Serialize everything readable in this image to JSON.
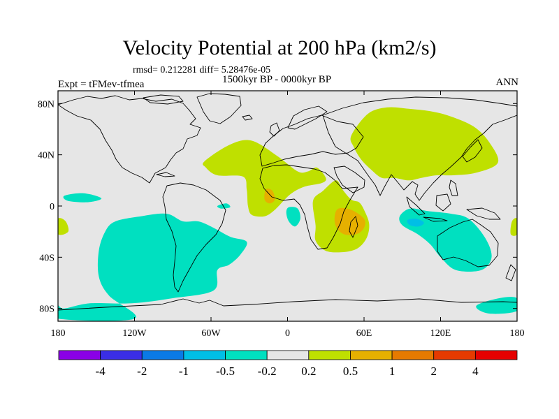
{
  "title": "Velocity Potential at 200 hPa (km2/s)",
  "stats": "rmsd= 0.212281  diff= 5.28476e-05",
  "subtitle": "1500kyr BP - 0000kyr BP",
  "experiment": "Expt = tFMev-tfmea",
  "season": "ANN",
  "map": {
    "projection": "cylindrical-equidistant",
    "lon_range": [
      -180,
      180
    ],
    "lat_range": [
      -90,
      90
    ],
    "background_color": "#e6e6e6",
    "coastline_color": "#000000",
    "lat_ticks": [
      {
        "value": 80,
        "label": "80N"
      },
      {
        "value": 40,
        "label": "40N"
      },
      {
        "value": 0,
        "label": "0"
      },
      {
        "value": -40,
        "label": "40S"
      },
      {
        "value": -80,
        "label": "80S"
      }
    ],
    "lon_ticks": [
      {
        "value": -180,
        "label": "180"
      },
      {
        "value": -120,
        "label": "120W"
      },
      {
        "value": -60,
        "label": "60W"
      },
      {
        "value": 0,
        "label": "0"
      },
      {
        "value": 60,
        "label": "60E"
      },
      {
        "value": 120,
        "label": "120E"
      },
      {
        "value": 180,
        "label": "180"
      }
    ],
    "anomaly_regions": [
      {
        "name": "eastern-pacific-south-america-negative",
        "band": "-0.5 to -0.2",
        "color": "#00e0c0",
        "polygon": [
          [
            -135,
            -12
          ],
          [
            -115,
            -8
          ],
          [
            -95,
            -6
          ],
          [
            -82,
            -12
          ],
          [
            -70,
            -12
          ],
          [
            -58,
            -17
          ],
          [
            -45,
            -24
          ],
          [
            -32,
            -28
          ],
          [
            -37,
            -38
          ],
          [
            -46,
            -46
          ],
          [
            -55,
            -50
          ],
          [
            -58,
            -66
          ],
          [
            -90,
            -72
          ],
          [
            -122,
            -76
          ],
          [
            -155,
            -76
          ],
          [
            -175,
            -80
          ],
          [
            -180,
            -78
          ],
          [
            -180,
            -88
          ],
          [
            -120,
            -88
          ],
          [
            -140,
            -70
          ],
          [
            -148,
            -55
          ],
          [
            -148,
            -35
          ],
          [
            -143,
            -20
          ]
        ]
      },
      {
        "name": "central-pacific-negative",
        "band": "-0.5 to -0.2",
        "color": "#00e0c0",
        "polygon": [
          [
            -175,
            8
          ],
          [
            -160,
            10
          ],
          [
            -146,
            6
          ],
          [
            -156,
            3
          ],
          [
            -172,
            4
          ]
        ]
      },
      {
        "name": "south-atlantic-negative",
        "band": "-0.5 to -0.2",
        "color": "#00e0c0",
        "polygon": [
          [
            -55,
            0
          ],
          [
            -48,
            2
          ],
          [
            -45,
            -1
          ],
          [
            -52,
            -2
          ]
        ]
      },
      {
        "name": "gulf-of-guinea-negative",
        "band": "-0.5 to -0.2",
        "color": "#00e0c0",
        "polygon": [
          [
            1,
            -1
          ],
          [
            8,
            -2
          ],
          [
            10,
            -10
          ],
          [
            6,
            -16
          ],
          [
            1,
            -12
          ],
          [
            -1,
            -5
          ]
        ]
      },
      {
        "name": "australia-indonesia-negative",
        "band": "-0.5 to -0.2",
        "color": "#00e0c0",
        "polygon": [
          [
            88,
            -8
          ],
          [
            96,
            -2
          ],
          [
            110,
            -4
          ],
          [
            128,
            -6
          ],
          [
            142,
            -10
          ],
          [
            155,
            -25
          ],
          [
            160,
            -40
          ],
          [
            152,
            -50
          ],
          [
            132,
            -50
          ],
          [
            120,
            -40
          ],
          [
            112,
            -30
          ],
          [
            102,
            -22
          ],
          [
            90,
            -15
          ]
        ]
      },
      {
        "name": "east-indian-ocean-core",
        "band": "-1 to -0.5",
        "color": "#00bfe6",
        "polygon": [
          [
            94,
            -11
          ],
          [
            101,
            -10
          ],
          [
            107,
            -13
          ],
          [
            103,
            -16
          ],
          [
            96,
            -15
          ]
        ]
      },
      {
        "name": "southern-ocean-negative",
        "band": "-0.5 to -0.2",
        "color": "#00e0c0",
        "polygon": [
          [
            148,
            -78
          ],
          [
            166,
            -72
          ],
          [
            180,
            -72
          ],
          [
            180,
            -82
          ],
          [
            158,
            -84
          ]
        ]
      },
      {
        "name": "west-pacific-edge-positive",
        "band": "0.2 to 0.5",
        "color": "#bfe000",
        "polygon": [
          [
            -180,
            -10
          ],
          [
            -174,
            -12
          ],
          [
            -172,
            -20
          ],
          [
            -180,
            -22
          ]
        ]
      },
      {
        "name": "east-edge-positive",
        "band": "0.2 to 0.5",
        "color": "#bfe000",
        "polygon": [
          [
            180,
            -10
          ],
          [
            176,
            -12
          ],
          [
            175,
            -22
          ],
          [
            180,
            -22
          ]
        ]
      },
      {
        "name": "atlantic-africa-positive",
        "band": "0.2 to 0.5",
        "color": "#bfe000",
        "polygon": [
          [
            -65,
            35
          ],
          [
            -45,
            48
          ],
          [
            -28,
            51
          ],
          [
            -8,
            39
          ],
          [
            8,
            27
          ],
          [
            16,
            27
          ],
          [
            23,
            30
          ],
          [
            30,
            22
          ],
          [
            27,
            18
          ],
          [
            13,
            15
          ],
          [
            2,
            9
          ],
          [
            -10,
            -3
          ],
          [
            -18,
            -8
          ],
          [
            -28,
            -7
          ],
          [
            -31,
            0
          ],
          [
            -32,
            13
          ],
          [
            -35,
            23
          ],
          [
            -55,
            24
          ],
          [
            -64,
            30
          ]
        ]
      },
      {
        "name": "east-africa-positive",
        "band": "0.2 to 0.5",
        "color": "#bfe000",
        "polygon": [
          [
            20,
            4
          ],
          [
            28,
            12
          ],
          [
            38,
            20
          ],
          [
            43,
            13
          ],
          [
            50,
            5
          ],
          [
            56,
            3
          ],
          [
            60,
            -3
          ],
          [
            64,
            -14
          ],
          [
            62,
            -25
          ],
          [
            55,
            -33
          ],
          [
            44,
            -36
          ],
          [
            30,
            -35
          ],
          [
            22,
            -27
          ],
          [
            22,
            -15
          ]
        ]
      },
      {
        "name": "asia-north-pacific-positive",
        "band": "0.2 to 0.5",
        "color": "#bfe000",
        "polygon": [
          [
            50,
            55
          ],
          [
            63,
            72
          ],
          [
            78,
            77
          ],
          [
            95,
            76
          ],
          [
            112,
            74
          ],
          [
            128,
            70
          ],
          [
            146,
            62
          ],
          [
            158,
            50
          ],
          [
            165,
            34
          ],
          [
            148,
            26
          ],
          [
            130,
            24
          ],
          [
            117,
            24
          ],
          [
            105,
            22
          ],
          [
            95,
            20
          ],
          [
            84,
            22
          ],
          [
            74,
            22
          ],
          [
            66,
            28
          ],
          [
            58,
            36
          ],
          [
            52,
            46
          ]
        ]
      },
      {
        "name": "west-africa-core",
        "band": "0.5 to 1",
        "color": "#e6b000",
        "polygon": [
          [
            -17,
            13
          ],
          [
            -12,
            12
          ],
          [
            -10,
            5
          ],
          [
            -14,
            2
          ],
          [
            -18,
            5
          ]
        ]
      },
      {
        "name": "mozambique-core",
        "band": "0.5 to 1",
        "color": "#e6b000",
        "polygon": [
          [
            40,
            -2
          ],
          [
            50,
            -3
          ],
          [
            60,
            -10
          ],
          [
            60,
            -17
          ],
          [
            54,
            -22
          ],
          [
            44,
            -22
          ],
          [
            38,
            -16
          ],
          [
            37,
            -8
          ]
        ]
      }
    ]
  },
  "colorbar": {
    "colors": [
      "#8a00e6",
      "#3a2ee6",
      "#0a7ae6",
      "#00bfe6",
      "#00e0c0",
      "#e6e6e6",
      "#bfe000",
      "#e6b000",
      "#e67a00",
      "#e63a00",
      "#e60000"
    ],
    "labels": [
      "-4",
      "-2",
      "-1",
      "-0.5",
      "-0.2",
      "0.2",
      "0.5",
      "1",
      "2",
      "4"
    ]
  }
}
